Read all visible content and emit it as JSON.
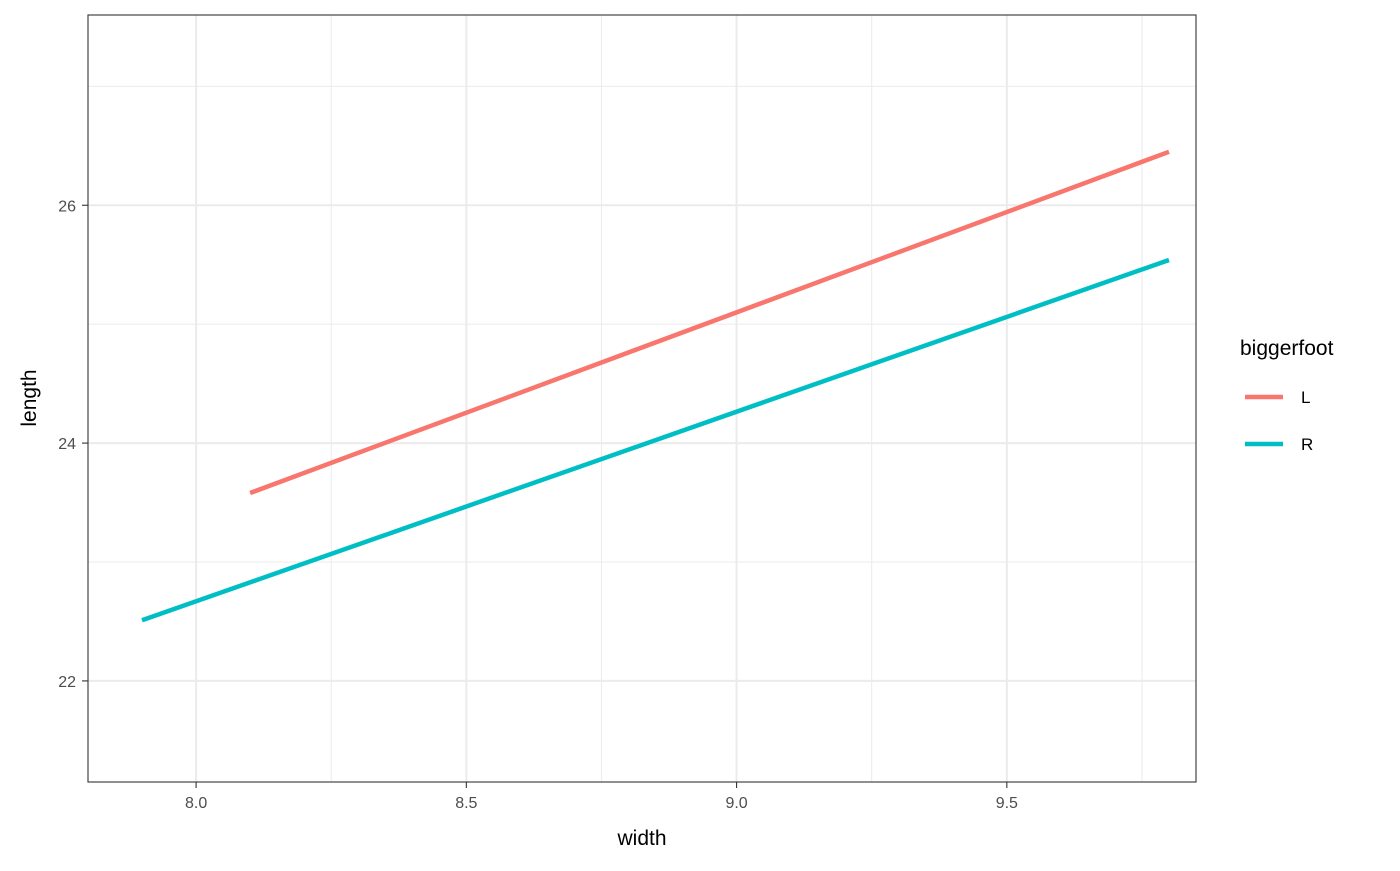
{
  "chart_data": {
    "type": "line",
    "xlabel": "width",
    "ylabel": "length",
    "xlim": [
      7.8,
      9.85
    ],
    "ylim": [
      21.15,
      27.6
    ],
    "x_ticks": [
      8.0,
      8.5,
      9.0,
      9.5
    ],
    "x_tick_labels": [
      "8.0",
      "8.5",
      "9.0",
      "9.5"
    ],
    "y_ticks": [
      22,
      24,
      26
    ],
    "y_tick_labels": [
      "22",
      "24",
      "26"
    ],
    "x_minor_gridlines": [
      8.25,
      8.75,
      9.25,
      9.75
    ],
    "y_minor_gridlines": [
      23,
      25,
      27
    ],
    "grid": true,
    "legend": {
      "title": "biggerfoot",
      "position": "right"
    },
    "series": [
      {
        "name": "L",
        "color": "#F8766D",
        "x": [
          8.1,
          9.8
        ],
        "y": [
          23.58,
          26.45
        ]
      },
      {
        "name": "R",
        "color": "#00BFC4",
        "x": [
          7.9,
          9.8
        ],
        "y": [
          22.51,
          25.54
        ]
      }
    ]
  }
}
